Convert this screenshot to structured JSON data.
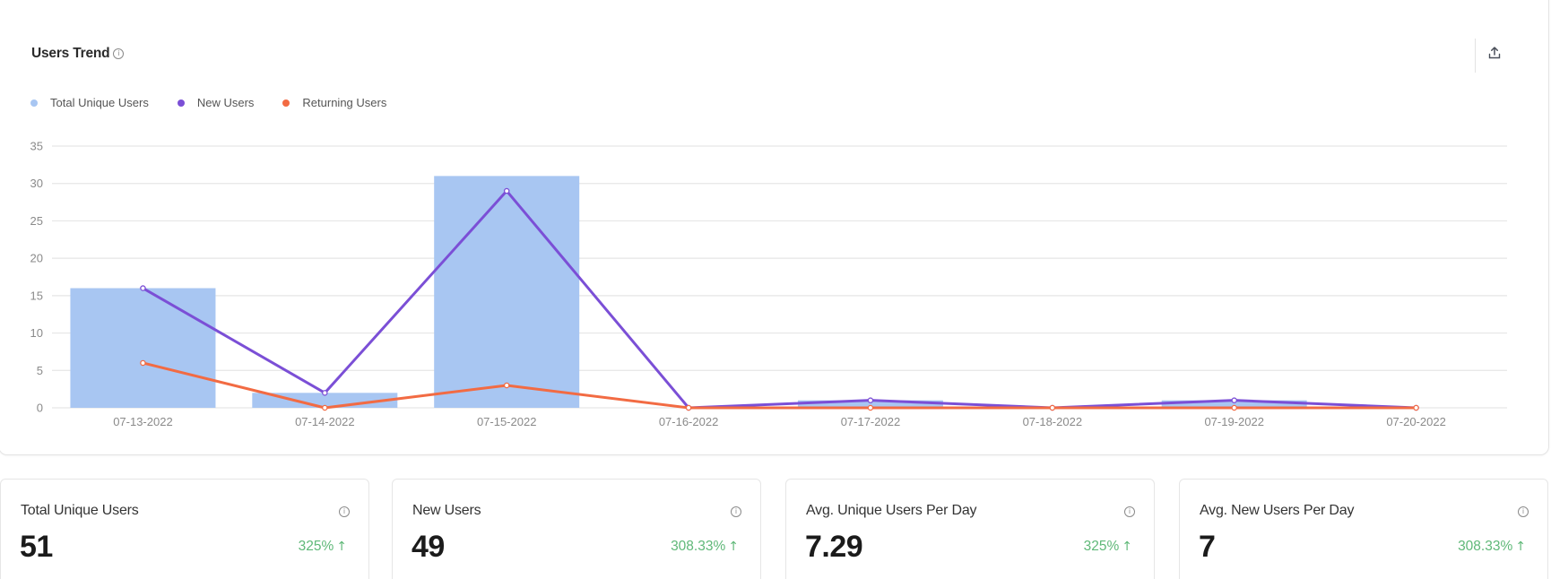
{
  "header": {
    "title": "Users Trend",
    "info_icon": "info-circle-icon",
    "export_icon": "export-upload-icon"
  },
  "legend": [
    {
      "label": "Total Unique Users",
      "color": "#a8c6f2"
    },
    {
      "label": "New Users",
      "color": "#7b4fd6"
    },
    {
      "label": "Returning Users",
      "color": "#f26b43"
    }
  ],
  "chart_data": {
    "type": "bar",
    "title": "Users Trend",
    "xlabel": "",
    "ylabel": "",
    "ylim": [
      0,
      35
    ],
    "yticks": [
      0,
      5,
      10,
      15,
      20,
      25,
      30,
      35
    ],
    "grid": true,
    "legend_position": "top-left",
    "categories": [
      "07-13-2022",
      "07-14-2022",
      "07-15-2022",
      "07-16-2022",
      "07-17-2022",
      "07-18-2022",
      "07-19-2022",
      "07-20-2022"
    ],
    "series": [
      {
        "name": "Total Unique Users",
        "type": "bar",
        "color": "#a8c6f2",
        "values": [
          16,
          2,
          31,
          0,
          1,
          0,
          1,
          0
        ]
      },
      {
        "name": "New Users",
        "type": "line",
        "color": "#7b4fd6",
        "values": [
          16,
          2,
          29,
          0,
          1,
          0,
          1,
          0
        ]
      },
      {
        "name": "Returning Users",
        "type": "line",
        "color": "#f26b43",
        "values": [
          6,
          0,
          3,
          0,
          0,
          0,
          0,
          0
        ]
      }
    ]
  },
  "stats": [
    {
      "label": "Total Unique Users",
      "value": "51",
      "change": "325%",
      "direction": "up"
    },
    {
      "label": "New Users",
      "value": "49",
      "change": "308.33%",
      "direction": "up"
    },
    {
      "label": "Avg. Unique Users Per Day",
      "value": "7.29",
      "change": "325%",
      "direction": "up"
    },
    {
      "label": "Avg. New Users Per Day",
      "value": "7",
      "change": "308.33%",
      "direction": "up"
    }
  ],
  "colors": {
    "positive": "#5fb878",
    "grid": "#e6e6e6",
    "axis_text": "#8a8a8a"
  }
}
